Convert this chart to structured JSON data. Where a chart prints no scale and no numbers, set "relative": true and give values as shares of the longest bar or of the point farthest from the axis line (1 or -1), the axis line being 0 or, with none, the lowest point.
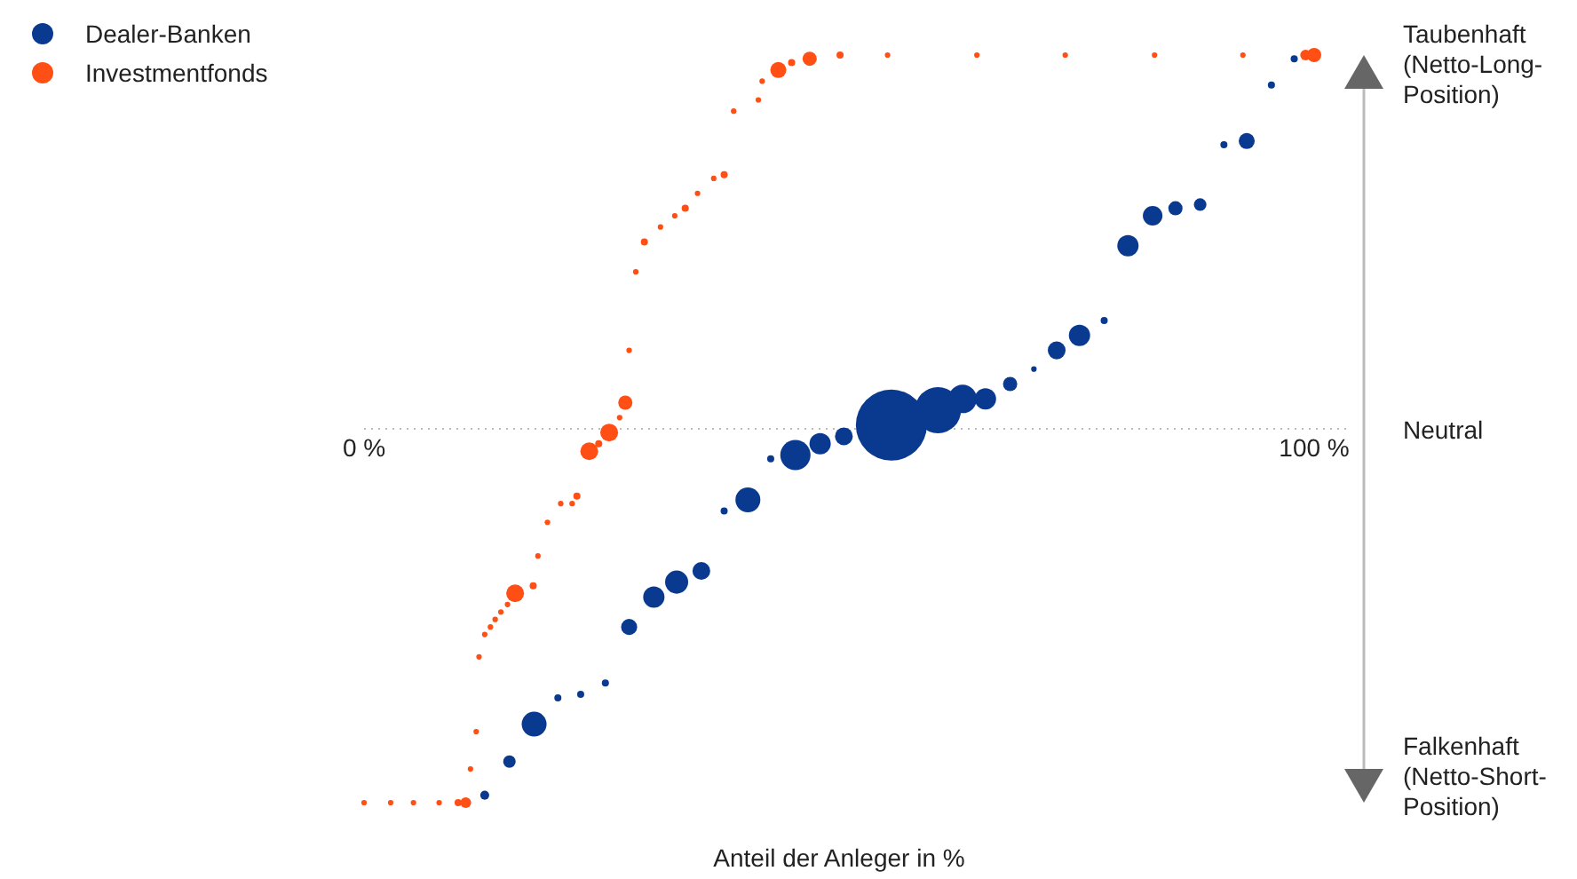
{
  "chart_data": {
    "type": "bubble",
    "xlabel": "Anteil der Anleger in %",
    "relative": true,
    "xlim": [
      0,
      100
    ],
    "xticks": [
      {
        "value": 0,
        "label": "0 %"
      },
      {
        "value": 100,
        "label": "100 %"
      }
    ],
    "tick_labels": "x",
    "grid": false,
    "legend": "top left",
    "ref_lines": [
      {
        "axis": "y",
        "value": 0,
        "label": "Neutral",
        "line_style": "dotted",
        "color": "#bbbbbb"
      }
    ],
    "annotations": [
      "Taubenhaft (Netto-Long-Position)",
      "Falkenhaft (Netto-Short-Position)"
    ],
    "series": [
      {
        "name": "Dealer-Banken",
        "color": "#0a3a8f",
        "x": [
          12.7,
          15.3,
          17.9,
          20.4,
          22.8,
          25.4,
          27.9,
          30.5,
          32.9,
          35.5,
          37.9,
          40.4,
          42.8,
          45.4,
          48.0,
          50.5,
          55.5,
          60.4,
          63.0,
          65.4,
          68.0,
          70.5,
          72.9,
          75.3,
          77.9,
          80.4,
          83.0,
          85.4,
          88.0,
          90.5,
          92.9,
          95.5,
          97.9
        ],
        "values": [
          -0.98,
          -0.89,
          -0.79,
          -0.72,
          -0.71,
          -0.68,
          -0.53,
          -0.45,
          -0.41,
          -0.38,
          -0.22,
          -0.19,
          -0.08,
          -0.07,
          -0.04,
          -0.02,
          0.01,
          0.05,
          0.08,
          0.08,
          0.12,
          0.16,
          0.21,
          0.25,
          0.29,
          0.49,
          0.57,
          0.59,
          0.6,
          0.76,
          0.77,
          0.92,
          0.99
        ],
        "sizes": [
          0.016,
          0.031,
          0.123,
          0.01,
          0.01,
          0.01,
          0.051,
          0.09,
          0.106,
          0.063,
          0.01,
          0.123,
          0.01,
          0.181,
          0.09,
          0.063,
          1,
          0.423,
          0.16,
          0.09,
          0.04,
          0.006,
          0.063,
          0.09,
          0.01,
          0.09,
          0.076,
          0.04,
          0.031,
          0.01,
          0.051,
          0.01,
          0.01
        ]
      },
      {
        "name": "Investmentfonds",
        "color": "#ff4f14",
        "x": [
          0,
          2.8,
          5.2,
          7.9,
          9.9,
          10.7,
          11.2,
          11.8,
          12.1,
          12.7,
          13.3,
          13.8,
          14.4,
          15.1,
          15.9,
          17.8,
          18.3,
          19.3,
          20.7,
          21.9,
          22.4,
          23.7,
          24.7,
          25.8,
          26.9,
          27.5,
          27.9,
          28.6,
          29.5,
          31.2,
          32.7,
          33.8,
          35.1,
          36.8,
          37.9,
          38.9,
          41.5,
          41.9,
          43.6,
          45.0,
          46.9,
          50.1,
          55.1,
          64.5,
          73.8,
          83.2,
          92.5,
          99.1,
          100
        ],
        "values": [
          -1,
          -1,
          -1,
          -1,
          -1,
          -1,
          -0.91,
          -0.81,
          -0.61,
          -0.55,
          -0.53,
          -0.51,
          -0.49,
          -0.47,
          -0.44,
          -0.42,
          -0.34,
          -0.25,
          -0.2,
          -0.2,
          -0.18,
          -0.06,
          -0.04,
          -0.01,
          0.03,
          0.07,
          0.21,
          0.42,
          0.5,
          0.54,
          0.57,
          0.59,
          0.63,
          0.67,
          0.68,
          0.85,
          0.88,
          0.93,
          0.96,
          0.98,
          0.99,
          1,
          1,
          1,
          1,
          1,
          1,
          1,
          1
        ],
        "sizes": [
          0.006,
          0.006,
          0.006,
          0.006,
          0.01,
          0.023,
          0.006,
          0.006,
          0.006,
          0.006,
          0.006,
          0.006,
          0.006,
          0.006,
          0.063,
          0.01,
          0.006,
          0.006,
          0.006,
          0.006,
          0.01,
          0.063,
          0.01,
          0.063,
          0.006,
          0.04,
          0.006,
          0.006,
          0.01,
          0.006,
          0.006,
          0.01,
          0.006,
          0.006,
          0.01,
          0.006,
          0.006,
          0.006,
          0.051,
          0.01,
          0.04,
          0.01,
          0.006,
          0.006,
          0.006,
          0.006,
          0.006,
          0.023,
          0.04
        ]
      }
    ]
  }
}
